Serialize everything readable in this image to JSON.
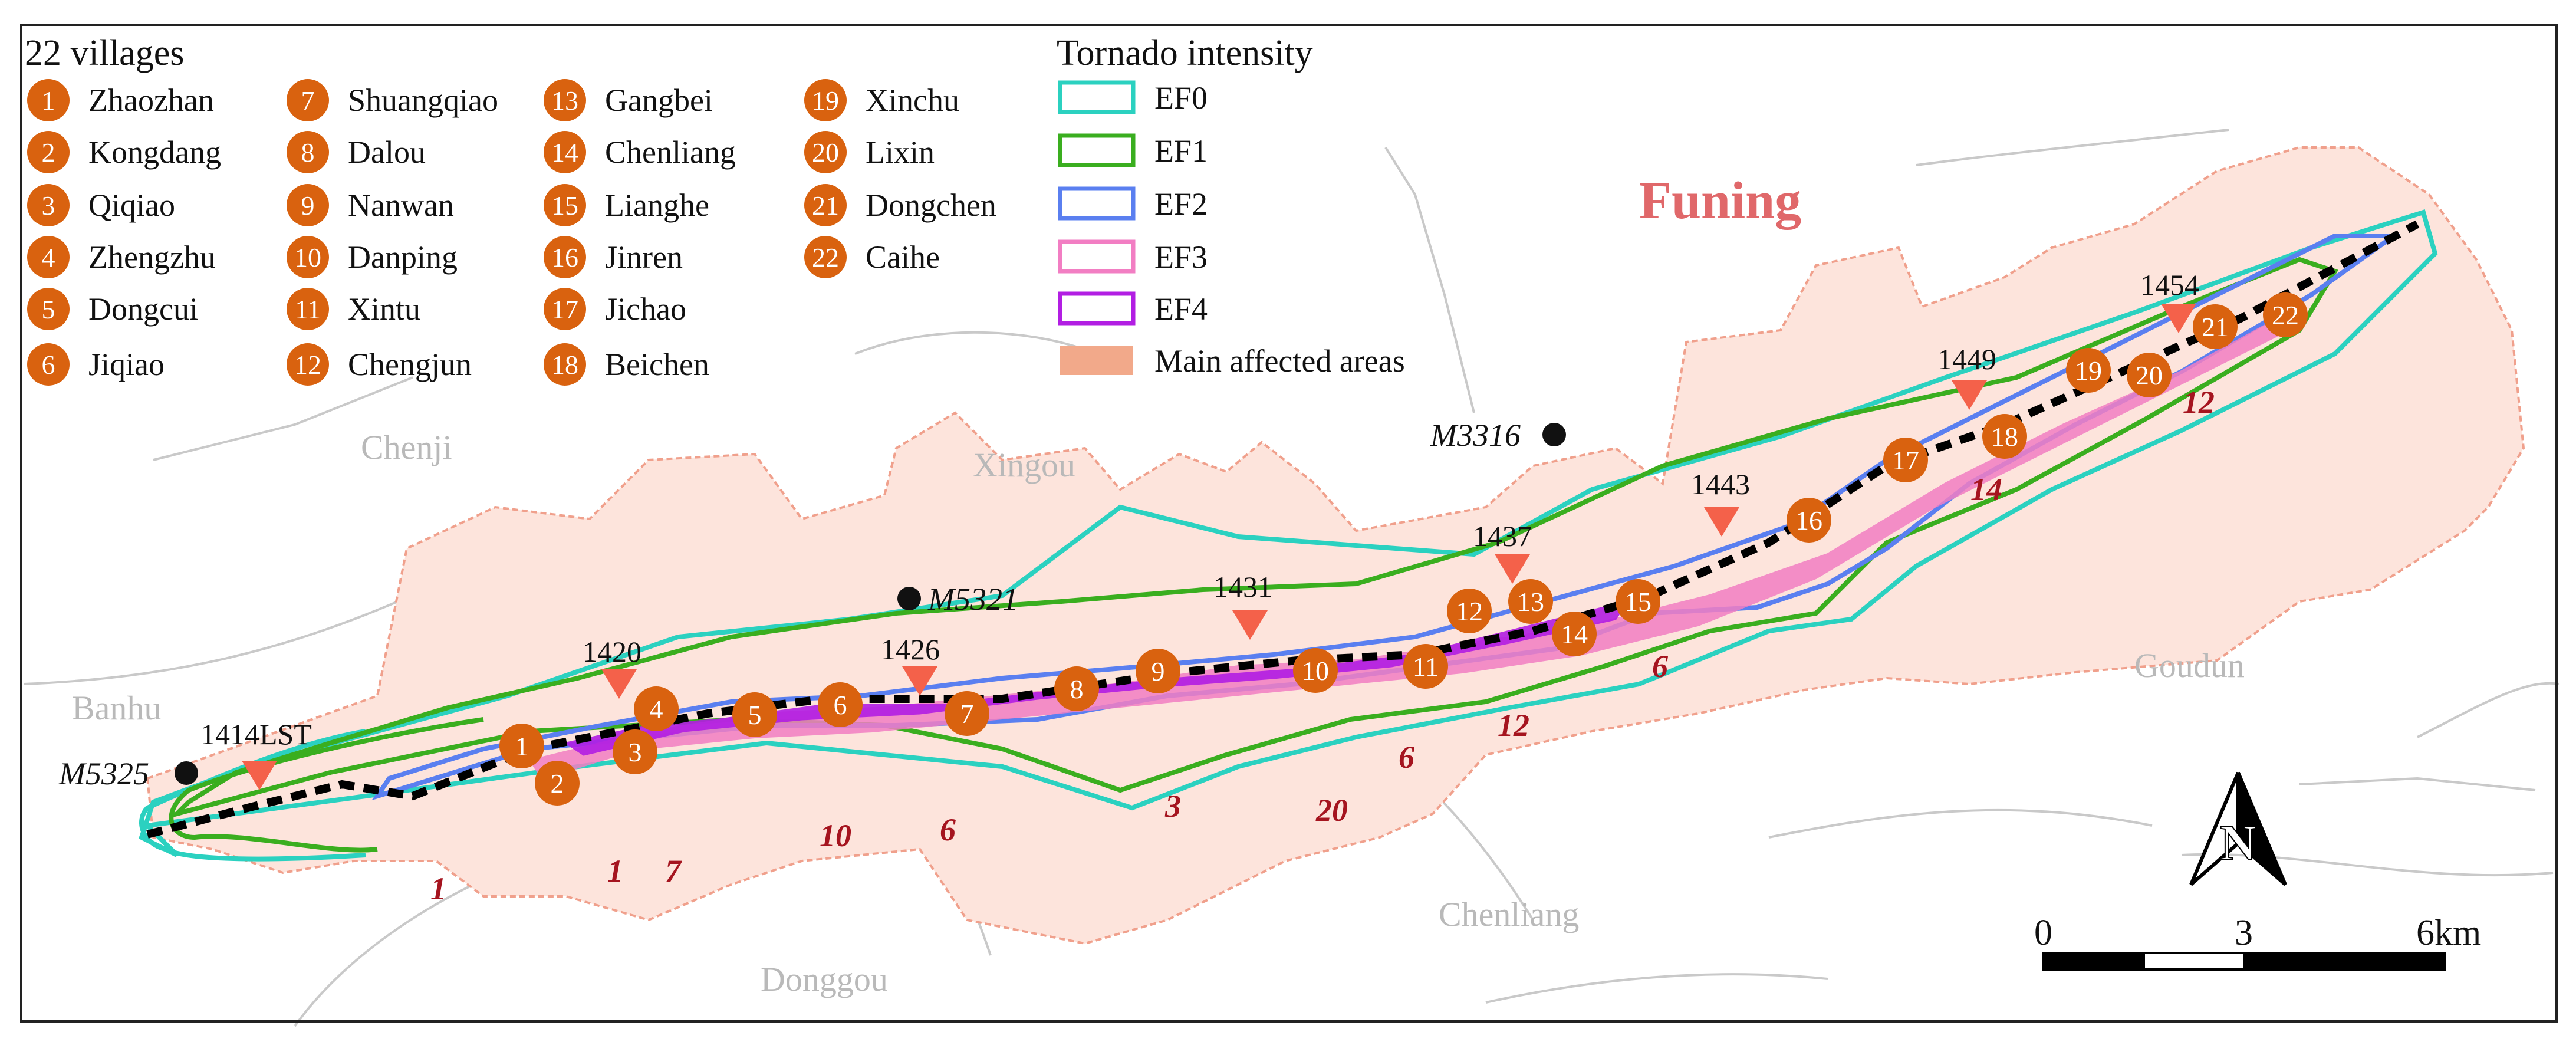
{
  "villages_legend": {
    "title": "22 villages",
    "items": [
      {
        "n": "1",
        "name": "Zhaozhan"
      },
      {
        "n": "2",
        "name": "Kongdang"
      },
      {
        "n": "3",
        "name": "Qiqiao"
      },
      {
        "n": "4",
        "name": "Zhengzhu"
      },
      {
        "n": "5",
        "name": "Dongcui"
      },
      {
        "n": "6",
        "name": "Jiqiao"
      },
      {
        "n": "7",
        "name": "Shuangqiao"
      },
      {
        "n": "8",
        "name": "Dalou"
      },
      {
        "n": "9",
        "name": "Nanwan"
      },
      {
        "n": "10",
        "name": "Danping"
      },
      {
        "n": "11",
        "name": "Xintu"
      },
      {
        "n": "12",
        "name": "Chengjun"
      },
      {
        "n": "13",
        "name": "Gangbei"
      },
      {
        "n": "14",
        "name": "Chenliang"
      },
      {
        "n": "15",
        "name": "Lianghe"
      },
      {
        "n": "16",
        "name": "Jinren"
      },
      {
        "n": "17",
        "name": "Jichao"
      },
      {
        "n": "18",
        "name": "Beichen"
      },
      {
        "n": "19",
        "name": "Xinchu"
      },
      {
        "n": "20",
        "name": "Lixin"
      },
      {
        "n": "21",
        "name": "Dongchen"
      },
      {
        "n": "22",
        "name": "Caihe"
      }
    ],
    "marker_color": "#d9620f"
  },
  "intensity_legend": {
    "title": "Tornado intensity",
    "items": [
      {
        "label": "EF0",
        "color": "#2bd1c0"
      },
      {
        "label": "EF1",
        "color": "#3aae1f"
      },
      {
        "label": "EF2",
        "color": "#5a7ff0"
      },
      {
        "label": "EF3",
        "color": "#f27ec3"
      },
      {
        "label": "EF4",
        "color": "#b21ee3"
      },
      {
        "label": "Main affected areas",
        "color": "#f2a98a"
      }
    ]
  },
  "region_label": "Funing",
  "towns": [
    "Chenji",
    "Xingou",
    "Banhu",
    "Goudun",
    "Chenliang",
    "Donggou"
  ],
  "stations": [
    "M5325",
    "M5321",
    "M3316"
  ],
  "time_labels": [
    "1414LST",
    "1420",
    "1426",
    "1431",
    "1437",
    "1443",
    "1449",
    "1454"
  ],
  "count_labels": [
    "1",
    "1",
    "7",
    "10",
    "6",
    "3",
    "20",
    "6",
    "12",
    "6",
    "14",
    "12"
  ],
  "village_markers": [
    "1",
    "2",
    "3",
    "4",
    "5",
    "6",
    "7",
    "8",
    "9",
    "10",
    "11",
    "12",
    "13",
    "14",
    "15",
    "16",
    "17",
    "18",
    "19",
    "20",
    "21",
    "22"
  ],
  "scale_bar": {
    "labels": [
      "0",
      "3",
      "6km"
    ]
  },
  "north_arrow": "N",
  "colors": {
    "area_fill": "#fde4dc",
    "area_outline": "#f0a08c",
    "track": "#000000",
    "time_marker": "#f4614a"
  }
}
